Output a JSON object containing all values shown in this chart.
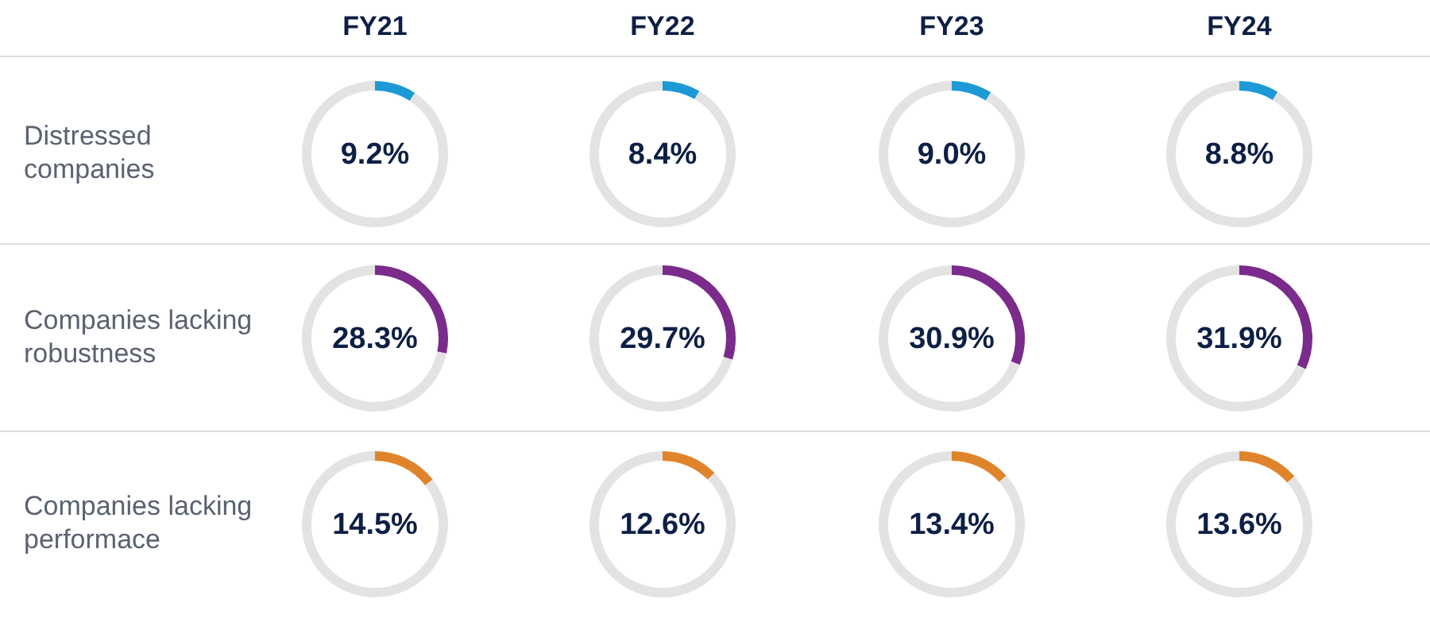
{
  "chart_data": [
    {
      "type": "donut",
      "title": "FY21",
      "ylabel": "Distressed companies",
      "categories": [
        null,
        null
      ],
      "values": [
        9.2,
        90.8
      ],
      "colors": [
        "#1d9ad6",
        "#e3e3e3"
      ],
      "annotations": [
        "9.2%"
      ]
    },
    {
      "type": "donut",
      "title": "FY22",
      "categories": [
        null,
        null
      ],
      "values": [
        8.4,
        91.6
      ],
      "colors": [
        "#1d9ad6",
        "#e3e3e3"
      ],
      "annotations": [
        "8.4%"
      ]
    },
    {
      "type": "donut",
      "title": "FY23",
      "categories": [
        null,
        null
      ],
      "values": [
        9.0,
        91.0
      ],
      "colors": [
        "#1d9ad6",
        "#e3e3e3"
      ],
      "annotations": [
        "9.0%"
      ]
    },
    {
      "type": "donut",
      "title": "FY24",
      "categories": [
        null,
        null
      ],
      "values": [
        8.8,
        91.2
      ],
      "colors": [
        "#1d9ad6",
        "#e3e3e3"
      ],
      "annotations": [
        "8.8%"
      ]
    },
    {
      "type": "donut",
      "ylabel": "Companies lacking robustness",
      "categories": [
        null,
        null
      ],
      "values": [
        28.3,
        71.7
      ],
      "colors": [
        "#7a2b8b",
        "#e3e3e3"
      ],
      "annotations": [
        "28.3%"
      ]
    },
    {
      "type": "donut",
      "categories": [
        null,
        null
      ],
      "values": [
        29.7,
        70.3
      ],
      "colors": [
        "#7a2b8b",
        "#e3e3e3"
      ],
      "annotations": [
        "29.7%"
      ]
    },
    {
      "type": "donut",
      "categories": [
        null,
        null
      ],
      "values": [
        30.9,
        69.1
      ],
      "colors": [
        "#7a2b8b",
        "#e3e3e3"
      ],
      "annotations": [
        "30.9%"
      ]
    },
    {
      "type": "donut",
      "categories": [
        null,
        null
      ],
      "values": [
        31.9,
        68.1
      ],
      "colors": [
        "#7a2b8b",
        "#e3e3e3"
      ],
      "annotations": [
        "31.9%"
      ]
    },
    {
      "type": "donut",
      "ylabel": "Companies lacking performace",
      "categories": [
        null,
        null
      ],
      "values": [
        14.5,
        85.5
      ],
      "colors": [
        "#e0842b",
        "#e3e3e3"
      ],
      "annotations": [
        "14.5%"
      ]
    },
    {
      "type": "donut",
      "categories": [
        null,
        null
      ],
      "values": [
        12.6,
        87.4
      ],
      "colors": [
        "#e0842b",
        "#e3e3e3"
      ],
      "annotations": [
        "12.6%"
      ]
    },
    {
      "type": "donut",
      "categories": [
        null,
        null
      ],
      "values": [
        13.4,
        86.6
      ],
      "colors": [
        "#e0842b",
        "#e3e3e3"
      ],
      "annotations": [
        "13.4%"
      ]
    },
    {
      "type": "donut",
      "categories": [
        null,
        null
      ],
      "values": [
        13.6,
        86.4
      ],
      "colors": [
        "#e0842b",
        "#e3e3e3"
      ],
      "annotations": [
        "13.6%"
      ]
    }
  ]
}
